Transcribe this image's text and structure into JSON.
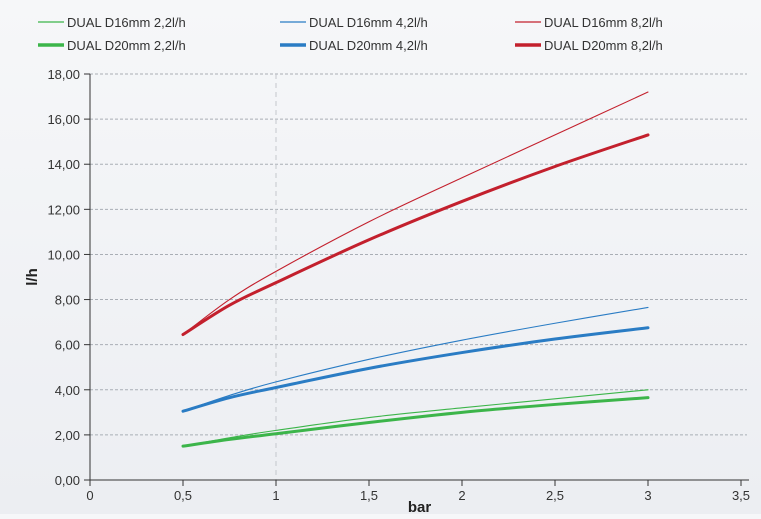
{
  "chart_data": {
    "type": "line",
    "title": "",
    "xlabel": "bar",
    "ylabel": "l/h",
    "xlim": [
      0,
      3.5
    ],
    "ylim": [
      0,
      18
    ],
    "x_ticks": [
      "0",
      "0,5",
      "1",
      "1,5",
      "2",
      "2,5",
      "3",
      "3,5"
    ],
    "y_ticks": [
      "0,00",
      "2,00",
      "4,00",
      "6,00",
      "8,00",
      "10,00",
      "12,00",
      "14,00",
      "16,00",
      "18,00"
    ],
    "grid": "horizontal-dashed",
    "reference_line_x": 1,
    "legend_position": "top",
    "series": [
      {
        "name": "DUAL D16mm 2,2l/h",
        "color": "#3cb54a",
        "width": "thin",
        "points": [
          [
            0.5,
            1.5
          ],
          [
            0.75,
            1.87
          ],
          [
            1,
            2.2
          ],
          [
            1.5,
            2.77
          ],
          [
            2,
            3.2
          ],
          [
            2.5,
            3.6
          ],
          [
            3,
            4.0
          ]
        ]
      },
      {
        "name": "DUAL  D16mm 4,2l/h",
        "color": "#2a7cc4",
        "width": "thin",
        "points": [
          [
            0.5,
            3.05
          ],
          [
            0.75,
            3.75
          ],
          [
            1,
            4.35
          ],
          [
            1.5,
            5.35
          ],
          [
            2,
            6.2
          ],
          [
            2.5,
            6.95
          ],
          [
            3,
            7.65
          ]
        ]
      },
      {
        "name": "DUAL  D16mm 8,2l/h",
        "color": "#c3202d",
        "width": "thin",
        "points": [
          [
            0.5,
            6.45
          ],
          [
            0.75,
            8.0
          ],
          [
            1,
            9.25
          ],
          [
            1.5,
            11.45
          ],
          [
            2,
            13.4
          ],
          [
            2.5,
            15.3
          ],
          [
            3,
            17.2
          ]
        ]
      },
      {
        "name": "DUAL D20mm 2,2l/h",
        "color": "#3cb54a",
        "width": "thick",
        "points": [
          [
            0.5,
            1.5
          ],
          [
            0.75,
            1.8
          ],
          [
            1,
            2.05
          ],
          [
            1.5,
            2.55
          ],
          [
            2,
            3.0
          ],
          [
            2.5,
            3.35
          ],
          [
            3,
            3.65
          ]
        ]
      },
      {
        "name": "DUAL  D20mm 4,2l/h",
        "color": "#2a7cc4",
        "width": "thick",
        "points": [
          [
            0.5,
            3.05
          ],
          [
            0.75,
            3.65
          ],
          [
            1,
            4.1
          ],
          [
            1.5,
            4.95
          ],
          [
            2,
            5.65
          ],
          [
            2.5,
            6.25
          ],
          [
            3,
            6.75
          ]
        ]
      },
      {
        "name": "DUAL  D20mm 8,2l/h",
        "color": "#c3202d",
        "width": "thick",
        "points": [
          [
            0.5,
            6.45
          ],
          [
            0.75,
            7.75
          ],
          [
            1,
            8.75
          ],
          [
            1.5,
            10.65
          ],
          [
            2,
            12.35
          ],
          [
            2.5,
            13.9
          ],
          [
            3,
            15.3
          ]
        ]
      }
    ]
  }
}
